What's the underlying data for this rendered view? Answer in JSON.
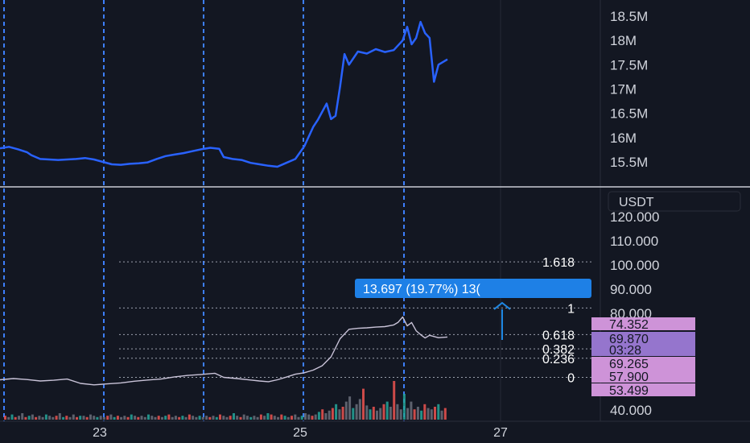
{
  "colors": {
    "background": "#131722",
    "grid": "#242836",
    "axis_text": "#d1d4dc",
    "separator": "#c9ccd4",
    "upper_line": "#2962ff",
    "vline": "#3d7fff",
    "price_line": "#c9c3d8",
    "fib_line": "#9aa0ad",
    "label_pink": "#ce93d8",
    "label_purple": "#9575cd",
    "tooltip_bg": "#1e80e6",
    "arrow": "#1e88e5",
    "vol_green": "#26a69a",
    "vol_red": "#ef5350",
    "vol_gray": "#6b6f7a"
  },
  "upper_pane": {
    "axis_labels": [
      "18.5M",
      "18M",
      "17.5M",
      "17M",
      "16.5M",
      "16M",
      "15.5M"
    ],
    "axis_values": [
      18500000,
      18000000,
      17500000,
      17000000,
      16500000,
      16000000,
      15500000
    ]
  },
  "lower_pane": {
    "currency_button": "USDT",
    "axis_labels": [
      "120.000",
      "110.000",
      "100.000",
      "90.000",
      "80.000",
      "40.000"
    ],
    "axis_values": [
      120,
      110,
      100,
      90,
      80,
      40
    ],
    "fib_levels": [
      {
        "label": "1.618",
        "price": 101.3
      },
      {
        "label": "1",
        "price": 82.2
      },
      {
        "label": "0.618",
        "price": 71.2
      },
      {
        "label": "0.382",
        "price": 65.3
      },
      {
        "label": "0.236",
        "price": 61.4
      },
      {
        "label": "0",
        "price": 53.499
      }
    ],
    "price_tags": [
      {
        "text": "74.352",
        "kind": "pink"
      },
      {
        "text": "69.870",
        "kind": "purple"
      },
      {
        "text": "03:28",
        "kind": "purple"
      },
      {
        "text": "69.265",
        "kind": "pink"
      },
      {
        "text": "57.900",
        "kind": "pink"
      },
      {
        "text": "53.499",
        "kind": "pink"
      }
    ],
    "measure_tooltip": "13.697 (19.77%) 13("
  },
  "time_axis": {
    "labels": [
      "23",
      "25",
      "27"
    ]
  },
  "chart_data": [
    {
      "type": "line",
      "title": "",
      "x_range": [
        0,
        100
      ],
      "ylim": [
        15250000,
        18750000
      ],
      "series": [
        {
          "values": [
            [
              0,
              15780000
            ],
            [
              2,
              15810000
            ],
            [
              4,
              15760000
            ],
            [
              6,
              15700000
            ],
            [
              7,
              15640000
            ],
            [
              9,
              15560000
            ],
            [
              11,
              15550000
            ],
            [
              13,
              15540000
            ],
            [
              15,
              15550000
            ],
            [
              17,
              15560000
            ],
            [
              19,
              15580000
            ],
            [
              21,
              15550000
            ],
            [
              23,
              15500000
            ],
            [
              25,
              15450000
            ],
            [
              27,
              15440000
            ],
            [
              29,
              15460000
            ],
            [
              31,
              15470000
            ],
            [
              33,
              15490000
            ],
            [
              35,
              15560000
            ],
            [
              37,
              15620000
            ],
            [
              39,
              15650000
            ],
            [
              41,
              15680000
            ],
            [
              43,
              15720000
            ],
            [
              45,
              15760000
            ],
            [
              47,
              15790000
            ],
            [
              49,
              15770000
            ],
            [
              50,
              15600000
            ],
            [
              52,
              15560000
            ],
            [
              54,
              15540000
            ],
            [
              56,
              15480000
            ],
            [
              58,
              15450000
            ],
            [
              60,
              15420000
            ],
            [
              62,
              15400000
            ],
            [
              64,
              15480000
            ],
            [
              66,
              15560000
            ],
            [
              68,
              15820000
            ],
            [
              70,
              16220000
            ],
            [
              71,
              16360000
            ],
            [
              73,
              16700000
            ],
            [
              74,
              16380000
            ],
            [
              75,
              16450000
            ],
            [
              76,
              17050000
            ],
            [
              77,
              17720000
            ],
            [
              78,
              17500000
            ],
            [
              80,
              17770000
            ],
            [
              82,
              17730000
            ],
            [
              84,
              17820000
            ],
            [
              86,
              17760000
            ],
            [
              88,
              17800000
            ],
            [
              90,
              18000000
            ],
            [
              91,
              18280000
            ],
            [
              92,
              17920000
            ],
            [
              93,
              18050000
            ],
            [
              94,
              18380000
            ],
            [
              95,
              18150000
            ],
            [
              96,
              18050000
            ],
            [
              97,
              17150000
            ],
            [
              98,
              17500000
            ],
            [
              100,
              17610000
            ]
          ]
        }
      ]
    },
    {
      "type": "line",
      "title": "",
      "x_range": [
        0,
        100
      ],
      "ylim": [
        35,
        125
      ],
      "series": [
        {
          "values": [
            [
              0,
              52.5
            ],
            [
              3,
              53.0
            ],
            [
              6,
              52.6
            ],
            [
              9,
              52.0
            ],
            [
              12,
              52.3
            ],
            [
              15,
              52.8
            ],
            [
              18,
              51.0
            ],
            [
              21,
              50.4
            ],
            [
              24,
              50.8
            ],
            [
              27,
              51.2
            ],
            [
              30,
              51.9
            ],
            [
              33,
              52.4
            ],
            [
              36,
              52.8
            ],
            [
              39,
              53.7
            ],
            [
              42,
              54.3
            ],
            [
              45,
              54.7
            ],
            [
              48,
              55.2
            ],
            [
              50,
              53.5
            ],
            [
              53,
              53.0
            ],
            [
              56,
              52.4
            ],
            [
              58,
              52.0
            ],
            [
              60,
              51.7
            ],
            [
              62,
              52.5
            ],
            [
              64,
              53.6
            ],
            [
              66,
              54.8
            ],
            [
              68,
              55.4
            ],
            [
              70,
              56.5
            ],
            [
              72,
              58.3
            ],
            [
              74,
              62.0
            ],
            [
              76,
              69.5
            ],
            [
              78,
              73.4
            ],
            [
              80,
              73.8
            ],
            [
              82,
              74.0
            ],
            [
              84,
              74.3
            ],
            [
              86,
              74.5
            ],
            [
              88,
              75.2
            ],
            [
              89,
              76.3
            ],
            [
              90,
              78.5
            ],
            [
              91,
              74.8
            ],
            [
              92,
              76.2
            ],
            [
              93,
              72.8
            ],
            [
              94,
              71.2
            ],
            [
              95,
              69.8
            ],
            [
              96,
              70.9
            ],
            [
              98,
              69.9
            ],
            [
              100,
              70.2
            ]
          ]
        }
      ]
    },
    {
      "type": "bar",
      "title": "",
      "values": [
        3,
        2,
        4,
        2,
        3,
        5,
        2,
        3,
        4,
        2,
        3,
        2,
        4,
        3,
        2,
        3,
        5,
        2,
        3,
        2,
        4,
        2,
        3,
        3,
        2,
        4,
        3,
        2,
        3,
        2,
        3,
        4,
        2,
        3,
        2,
        3,
        2,
        4,
        3,
        2,
        3,
        2,
        4,
        3,
        2,
        3,
        2,
        3,
        4,
        2,
        3,
        2,
        3,
        2,
        4,
        3,
        2,
        3,
        2,
        3,
        2,
        3,
        2,
        4,
        3,
        2,
        3,
        5,
        3,
        2,
        4,
        3,
        2,
        3,
        2,
        4,
        3,
        5,
        4,
        3,
        2,
        4,
        3,
        2,
        3,
        4,
        2,
        3,
        5,
        4,
        3,
        4,
        6,
        8,
        5,
        7,
        9,
        12,
        8,
        10,
        14,
        18,
        9,
        12,
        16,
        24,
        11,
        8,
        10,
        7,
        9,
        12,
        14,
        10,
        30,
        12,
        8,
        20,
        9,
        14,
        8,
        10,
        7,
        12,
        9,
        8,
        10,
        12,
        7,
        9
      ]
    }
  ]
}
